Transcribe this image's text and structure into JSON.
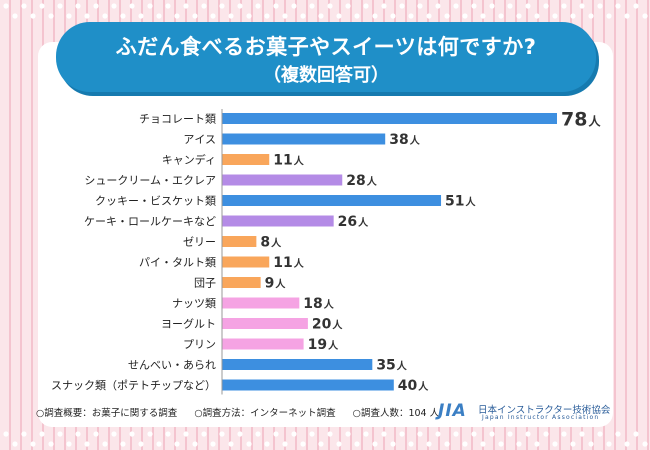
{
  "header": {
    "title": "ふだん食べるお菓子やスイーツは何ですか?",
    "subtitle": "（複数回答可）"
  },
  "chart_data": {
    "type": "bar",
    "orientation": "horizontal",
    "title": "ふだん食べるお菓子やスイーツは何ですか?（複数回答可）",
    "unit": "人",
    "categories": [
      "チョコレート類",
      "アイス",
      "キャンディ",
      "シュークリーム・エクレア",
      "クッキー・ビスケット類",
      "ケーキ・ロールケーキなど",
      "ゼリー",
      "パイ・タルト類",
      "団子",
      "ナッツ類",
      "ヨーグルト",
      "プリン",
      "せんべい・あられ",
      "スナック類（ポテトチップなど）"
    ],
    "values": [
      78,
      38,
      11,
      28,
      51,
      26,
      8,
      11,
      9,
      18,
      20,
      19,
      35,
      40
    ],
    "colors": [
      "#3d8fe0",
      "#3d8fe0",
      "#f9a65b",
      "#b48be6",
      "#3d8fe0",
      "#b48be6",
      "#f9a65b",
      "#f9a65b",
      "#f9a65b",
      "#f5a3e3",
      "#f5a3e3",
      "#f5a3e3",
      "#3d8fe0",
      "#3d8fe0"
    ],
    "xlim": [
      0,
      78
    ],
    "xlabel": "",
    "ylabel": ""
  },
  "footer": {
    "items": [
      "○調査概要：お菓子に関する調査",
      "○調査方法：インターネット調査",
      "○調査人数：104 人"
    ]
  },
  "logo": {
    "mark": "JIA",
    "name_jp": "日本インストラクター技術協会",
    "name_en": "Japan Instructor Association"
  }
}
